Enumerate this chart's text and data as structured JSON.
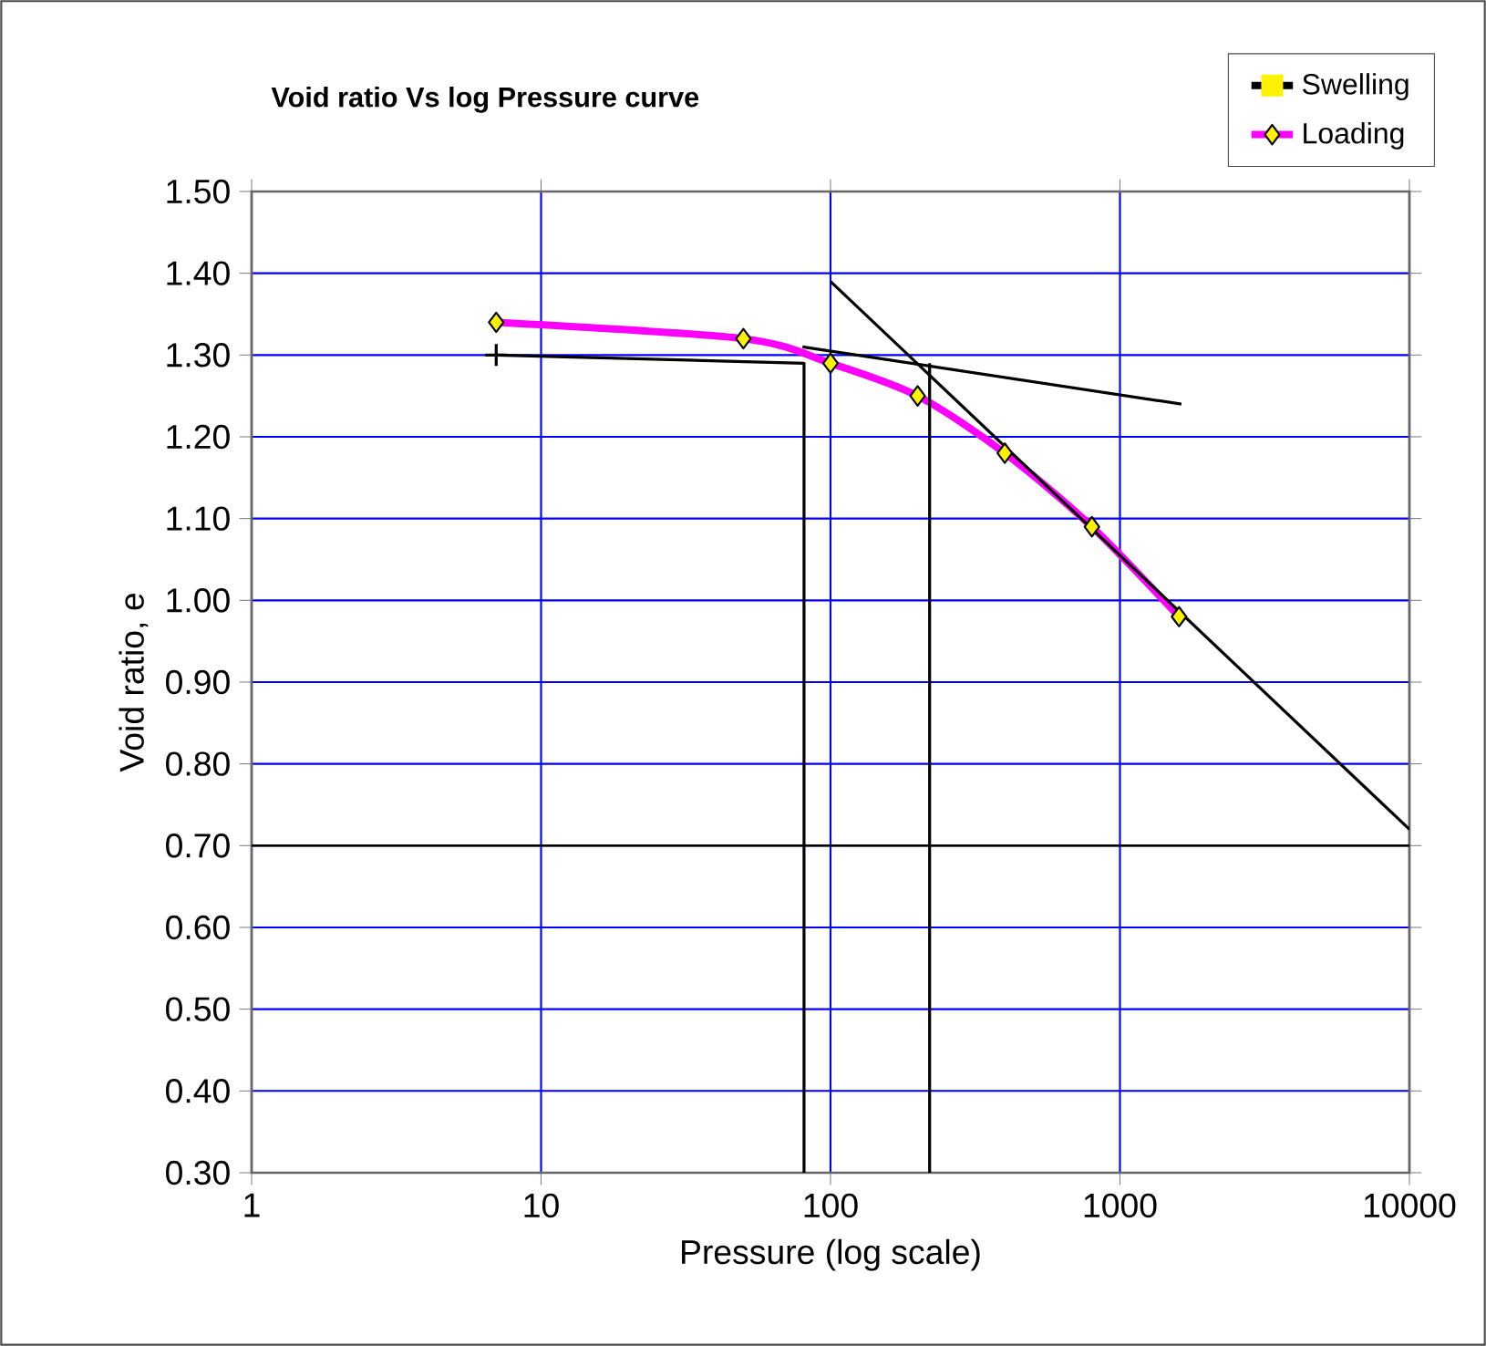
{
  "chart_data": {
    "type": "line",
    "title": "Void ratio Vs log Pressure curve",
    "xlabel": "Pressure (log scale)",
    "ylabel": "Void ratio, e",
    "log": "x",
    "grid": true,
    "legend": "top right",
    "xlim": [
      1,
      10000
    ],
    "xticks": [
      1,
      10,
      100,
      1000,
      10000
    ],
    "ylim": [
      0.3,
      1.5
    ],
    "yticks": [
      {
        "value": 0.3,
        "label": "0.30"
      },
      {
        "value": 0.4,
        "label": "0.40"
      },
      {
        "value": 0.5,
        "label": "0.50"
      },
      {
        "value": 0.6,
        "label": "0.60"
      },
      {
        "value": 0.7,
        "label": "0.70"
      },
      {
        "value": 0.8,
        "label": "0.80"
      },
      {
        "value": 0.9,
        "label": "0.90"
      },
      {
        "value": 1.0,
        "label": "1.00"
      },
      {
        "value": 1.1,
        "label": "1.10"
      },
      {
        "value": 1.2,
        "label": "1.20"
      },
      {
        "value": 1.3,
        "label": "1.30"
      },
      {
        "value": 1.4,
        "label": "1.40"
      },
      {
        "value": 1.5,
        "label": "1.50"
      }
    ],
    "ref_lines": [
      {
        "axis": "y",
        "value": 0.7,
        "color": "#000000"
      }
    ],
    "series": [
      {
        "name": "Swelling",
        "color": "#000000",
        "marker": "cross",
        "x": [
          7
        ],
        "values": [
          1.3
        ]
      },
      {
        "name": "Loading",
        "color": "#ff00ff",
        "marker": "diamond",
        "x": [
          7,
          50,
          100,
          200,
          400,
          800,
          1600
        ],
        "values": [
          1.34,
          1.32,
          1.29,
          1.25,
          1.18,
          1.09,
          0.98
        ]
      },
      {
        "color": "#000000",
        "marker": "none",
        "x": [
          7,
          81,
          81
        ],
        "values": [
          1.3,
          1.29,
          0.3
        ]
      },
      {
        "color": "#000000",
        "marker": "none",
        "x": [
          80,
          1630
        ],
        "values": [
          1.31,
          1.24
        ]
      },
      {
        "color": "#000000",
        "marker": "none",
        "x": [
          100,
          10000
        ],
        "values": [
          1.39,
          0.72
        ]
      },
      {
        "color": "#000000",
        "marker": "none",
        "x": [
          220,
          220
        ],
        "values": [
          1.29,
          0.3
        ]
      }
    ]
  }
}
